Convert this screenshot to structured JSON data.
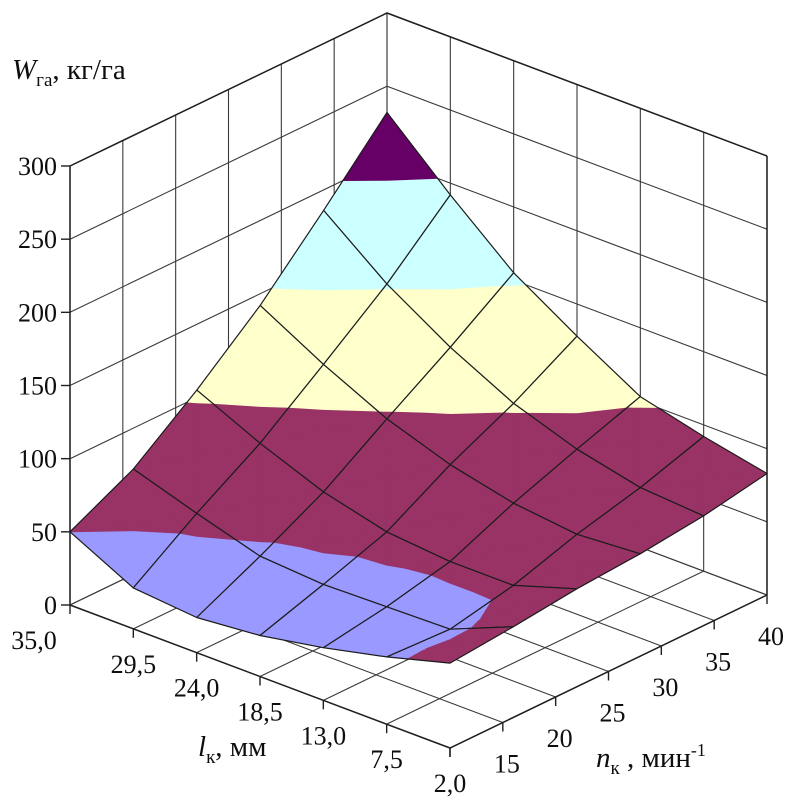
{
  "chart_data": {
    "type": "surface",
    "title": "",
    "z_title": {
      "var": "W",
      "sub": "га",
      "rest": ", кг/га"
    },
    "l_title": {
      "var": "l",
      "sub": "к",
      "rest": ", мм"
    },
    "n_title": {
      "var": "n",
      "sub": "к",
      "rest": " , мин",
      "sup": "-1"
    },
    "l_axis_values": [
      35.0,
      29.5,
      24.0,
      18.5,
      13.0,
      7.5,
      2.0
    ],
    "l_tick_labels": [
      "35,0",
      "29,5",
      "24,0",
      "18,5",
      "13,0",
      "7,5",
      "2,0"
    ],
    "n_axis_values": [
      15,
      20,
      25,
      30,
      35,
      40
    ],
    "n_tick_labels": [
      "15",
      "20",
      "25",
      "30",
      "35",
      "40"
    ],
    "z_tick_values": [
      0,
      50,
      100,
      150,
      200,
      250,
      300
    ],
    "z_tick_labels": [
      "0",
      "50",
      "100",
      "150",
      "200",
      "250",
      "300"
    ],
    "z_range": [
      0,
      300
    ],
    "grid_rows_are_n": true,
    "values_by_n_row": [
      [
        50,
        28,
        24,
        28,
        36,
        46,
        58
      ],
      [
        72,
        58,
        45,
        42,
        43,
        44,
        62
      ],
      [
        105,
        85,
        68,
        57,
        53,
        53,
        67
      ],
      [
        142,
        118,
        97,
        82,
        72,
        67,
        70
      ],
      [
        186,
        152,
        125,
        103,
        88,
        78,
        75
      ],
      [
        232,
        192,
        155,
        128,
        103,
        92,
        83
      ]
    ],
    "bands": [
      {
        "range": [
          0,
          50
        ],
        "color": "#9999FF"
      },
      {
        "range": [
          50,
          100
        ],
        "color": "#993366"
      },
      {
        "range": [
          100,
          150
        ],
        "color": "#FFFFCC"
      },
      {
        "range": [
          150,
          200
        ],
        "color": "#CCFFFF"
      },
      {
        "range": [
          200,
          250
        ],
        "color": "#660066"
      }
    ],
    "legend": "none",
    "grid": "on",
    "wall_grid_color": "#3a3a3a",
    "mesh_color": "#1c1c1c",
    "axis_color": "#1f1f1f",
    "text_color": "#0e0e0e",
    "background_color": "#ffffff"
  }
}
